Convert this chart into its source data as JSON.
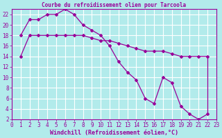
{
  "title": "Courbe du refroidissement olien pour Tarcoola",
  "xlabel": "Windchill (Refroidissement éolien,°C)",
  "background_color": "#b2ebeb",
  "line_color": "#990099",
  "grid_color": "#ffffff",
  "xlim": [
    0,
    23
  ],
  "ylim": [
    2,
    23
  ],
  "xticks": [
    0,
    1,
    2,
    3,
    4,
    5,
    6,
    7,
    8,
    9,
    10,
    11,
    12,
    13,
    14,
    15,
    16,
    17,
    18,
    19,
    20,
    21,
    22,
    23
  ],
  "yticks": [
    2,
    4,
    6,
    8,
    10,
    12,
    14,
    16,
    18,
    20,
    22
  ],
  "line1_x": [
    1,
    2,
    3,
    4,
    5,
    6,
    7,
    8,
    9,
    10,
    11,
    12,
    13,
    14,
    15,
    16,
    17,
    18,
    19,
    20,
    21,
    22
  ],
  "line1_y": [
    18,
    21,
    21,
    22,
    22,
    23,
    22,
    20,
    19,
    18,
    16,
    13,
    11,
    9.5,
    6,
    5,
    10,
    9,
    4.5,
    3,
    2,
    3
  ],
  "line2_x": [
    1,
    2,
    3,
    4,
    5,
    6,
    7,
    8,
    9,
    10,
    11,
    12,
    13,
    14,
    15,
    16,
    17,
    18,
    19,
    20,
    21,
    22
  ],
  "line2_y": [
    14,
    18,
    18,
    18,
    18,
    18,
    18,
    18,
    17.5,
    17,
    17,
    16.5,
    16,
    15.5,
    15,
    15,
    15,
    14.5,
    14,
    14,
    14,
    14
  ],
  "font_color": "#990099",
  "tick_fontsize": 5.5,
  "label_fontsize": 6.0,
  "title_fontsize": 5.5
}
